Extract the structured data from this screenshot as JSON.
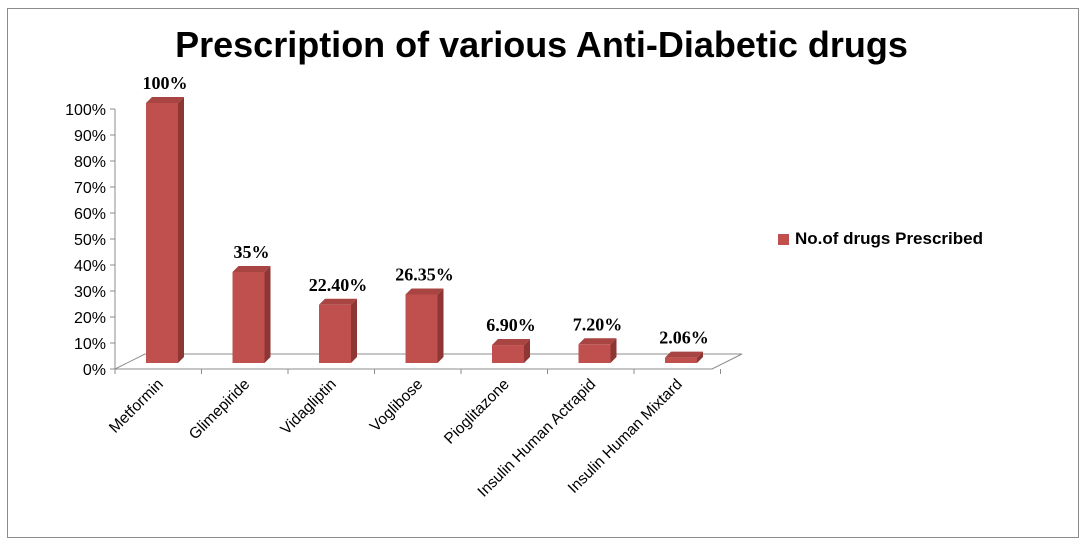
{
  "chart_data": {
    "type": "bar",
    "title": "Prescription of various Anti-Diabetic drugs",
    "categories": [
      "Metformin",
      "Glimepiride",
      "Vidagliptin",
      "Voglibose",
      "Pioglitazone",
      "Insulin Human Actrapid",
      "Insulin Human Mixtard"
    ],
    "series": [
      {
        "name": "No.of drugs Prescribed",
        "values": [
          100,
          35,
          22.4,
          26.35,
          6.9,
          7.2,
          2.06
        ],
        "color": "#c0504d"
      }
    ],
    "data_labels": [
      "100%",
      "35%",
      "22.40%",
      "26.35%",
      "6.90%",
      "7.20%",
      "2.06%"
    ],
    "yticks": [
      "0%",
      "10%",
      "20%",
      "30%",
      "40%",
      "50%",
      "60%",
      "70%",
      "80%",
      "90%",
      "100%"
    ],
    "ylim": [
      0,
      100
    ],
    "grid": false,
    "legend_position": "right",
    "three_d": true
  }
}
